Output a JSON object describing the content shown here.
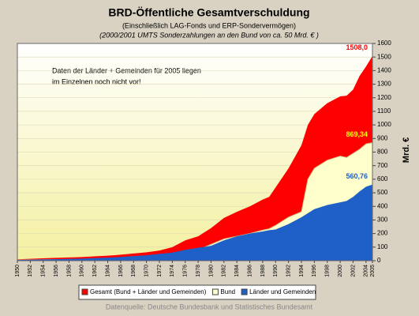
{
  "chart_data": {
    "type": "area",
    "title": "BRD-Öffentliche Gesamtverschuldung",
    "subtitle": "(Einschließlich LAG-Fonds und ERP-Sondervermögen)",
    "subtitle2": "(2000/2001 UMTS Sonderzahlungen an den Bund von ca. 50 Mrd. € )",
    "annotation": [
      "Daten der Länder + Gemeinden für 2005 liegen",
      "im Einzelnen noch nicht vor!"
    ],
    "y_label": "Mrd. €",
    "source": "Datenquelle: Deutsche Bundesbank und Statistisches Bundesamt",
    "x": [
      1950,
      1955,
      1960,
      1965,
      1970,
      1972,
      1974,
      1976,
      1978,
      1980,
      1982,
      1984,
      1986,
      1988,
      1989,
      1990,
      1992,
      1994,
      1995,
      1996,
      1998,
      2000,
      2001,
      2002,
      2003,
      2004,
      2005
    ],
    "series": [
      {
        "name": "Gesamt (Bund + Länder und Gemeinden)",
        "color": "#ff0000",
        "value_label": "1508,0",
        "values": [
          10,
          20,
          27,
          40,
          62,
          75,
          100,
          150,
          180,
          240,
          315,
          360,
          400,
          450,
          470,
          540,
          680,
          850,
          1000,
          1080,
          1160,
          1210,
          1215,
          1260,
          1360,
          1430,
          1508.0
        ]
      },
      {
        "name": "Bund",
        "color": "#ffffcc",
        "value_label": "869,34",
        "values": [
          5,
          8,
          12,
          18,
          25,
          30,
          40,
          60,
          80,
          120,
          160,
          180,
          200,
          225,
          235,
          260,
          320,
          360,
          600,
          680,
          740,
          770,
          760,
          790,
          820,
          860,
          869.34
        ]
      },
      {
        "name": "Länder und Gemeinden",
        "color": "#1f5fc8",
        "value_label": "560,76",
        "values": [
          5,
          10,
          15,
          25,
          40,
          50,
          60,
          80,
          95,
          110,
          150,
          180,
          200,
          215,
          225,
          230,
          270,
          320,
          350,
          380,
          410,
          430,
          440,
          470,
          510,
          545,
          560.76
        ]
      }
    ],
    "xlim": [
      1950,
      2005
    ],
    "xticks": [
      1950,
      1952,
      1954,
      1956,
      1958,
      1960,
      1962,
      1964,
      1966,
      1968,
      1970,
      1972,
      1974,
      1976,
      1978,
      1980,
      1982,
      1984,
      1986,
      1988,
      1990,
      1992,
      1994,
      1996,
      1998,
      2000,
      2002,
      2004,
      2005
    ],
    "ylim": [
      0,
      1600
    ],
    "yticks": [
      0,
      100,
      200,
      300,
      400,
      500,
      600,
      700,
      800,
      900,
      1000,
      1100,
      1200,
      1300,
      1400,
      1500,
      1600
    ],
    "grid": true
  }
}
